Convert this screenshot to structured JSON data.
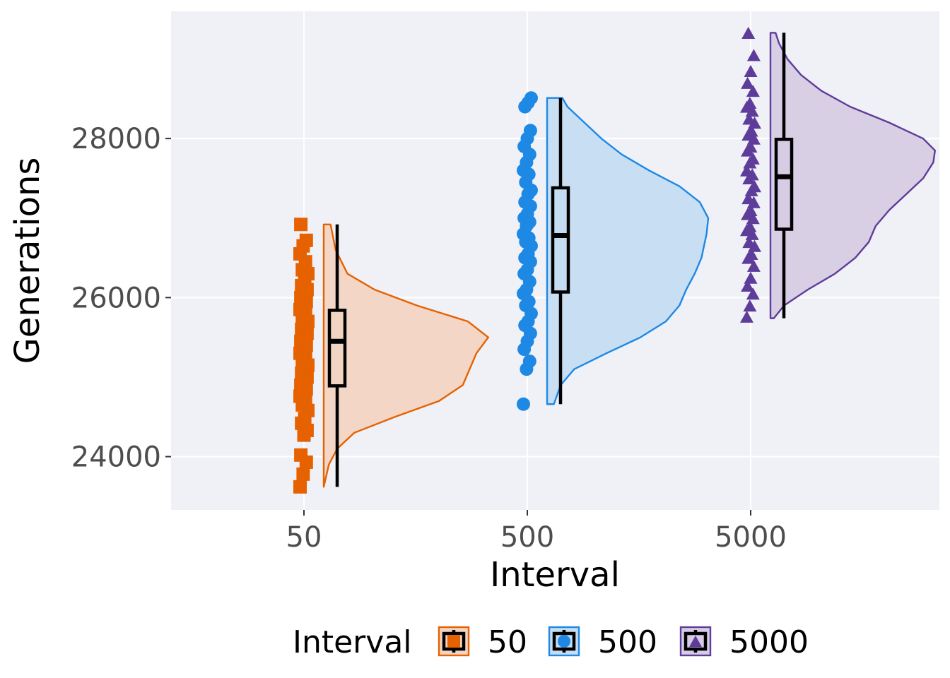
{
  "chart_data": {
    "type": "raincloud",
    "xlabel": "Interval",
    "ylabel": "Generations",
    "categories": [
      "50",
      "500",
      "5000"
    ],
    "ylim": [
      23330,
      29600
    ],
    "y_ticks": [
      24000,
      26000,
      28000
    ],
    "y_tick_labels": [
      "24000",
      "26000",
      "28000"
    ],
    "grid": true,
    "legend": {
      "position": "bottom",
      "title": "Interval",
      "entries": [
        "50",
        "500",
        "5000"
      ]
    },
    "series": [
      {
        "name": "50",
        "color": "#e66100",
        "fill": "#f2d4c2",
        "marker": "square",
        "box": {
          "min": 23620,
          "q1": 24890,
          "median": 25450,
          "q3": 25840,
          "max": 26920
        },
        "violin_range": [
          23620,
          26920
        ],
        "density": [
          [
            23620,
            0.0
          ],
          [
            23900,
            0.03
          ],
          [
            24100,
            0.08
          ],
          [
            24300,
            0.18
          ],
          [
            24500,
            0.42
          ],
          [
            24700,
            0.68
          ],
          [
            24900,
            0.82
          ],
          [
            25100,
            0.86
          ],
          [
            25300,
            0.9
          ],
          [
            25500,
            0.97
          ],
          [
            25700,
            0.85
          ],
          [
            25900,
            0.55
          ],
          [
            26100,
            0.3
          ],
          [
            26300,
            0.14
          ],
          [
            26600,
            0.07
          ],
          [
            26920,
            0.04
          ]
        ],
        "points": [
          23620,
          23780,
          23930,
          24020,
          24270,
          24330,
          24420,
          24480,
          24580,
          24650,
          24700,
          24760,
          24800,
          24850,
          24900,
          24950,
          25000,
          25050,
          25100,
          25150,
          25200,
          25250,
          25300,
          25350,
          25400,
          25450,
          25500,
          25550,
          25600,
          25650,
          25700,
          25750,
          25800,
          25850,
          25900,
          25950,
          26000,
          26050,
          26100,
          26150,
          26250,
          26300,
          26350,
          26450,
          26550,
          26650,
          26720,
          26920
        ]
      },
      {
        "name": "500",
        "color": "#1e88e5",
        "fill": "#c5ddf2",
        "marker": "circle",
        "box": {
          "min": 24660,
          "q1": 26070,
          "median": 26780,
          "q3": 27380,
          "max": 28510
        },
        "violin_range": [
          24660,
          28510
        ],
        "density": [
          [
            24660,
            0.04
          ],
          [
            24900,
            0.08
          ],
          [
            25100,
            0.16
          ],
          [
            25300,
            0.35
          ],
          [
            25500,
            0.55
          ],
          [
            25700,
            0.7
          ],
          [
            25900,
            0.78
          ],
          [
            26100,
            0.82
          ],
          [
            26300,
            0.87
          ],
          [
            26500,
            0.91
          ],
          [
            26800,
            0.94
          ],
          [
            27000,
            0.95
          ],
          [
            27200,
            0.9
          ],
          [
            27400,
            0.78
          ],
          [
            27600,
            0.6
          ],
          [
            27800,
            0.44
          ],
          [
            28000,
            0.32
          ],
          [
            28200,
            0.22
          ],
          [
            28400,
            0.12
          ],
          [
            28510,
            0.09
          ]
        ],
        "points": [
          24660,
          25100,
          25200,
          25350,
          25450,
          25550,
          25650,
          25700,
          25800,
          25900,
          25950,
          26050,
          26100,
          26200,
          26300,
          26350,
          26450,
          26500,
          26550,
          26650,
          26700,
          26750,
          26800,
          26900,
          26950,
          27000,
          27050,
          27150,
          27200,
          27300,
          27350,
          27450,
          27550,
          27600,
          27700,
          27800,
          27900,
          28000,
          28100,
          28400,
          28450,
          28510
        ]
      },
      {
        "name": "5000",
        "color": "#5e3c99",
        "fill": "#d7cce4",
        "marker": "triangle",
        "box": {
          "min": 25740,
          "q1": 26860,
          "median": 27520,
          "q3": 27990,
          "max": 29330
        },
        "violin_range": [
          25740,
          29330
        ],
        "density": [
          [
            25740,
            0.02
          ],
          [
            25900,
            0.08
          ],
          [
            26100,
            0.22
          ],
          [
            26300,
            0.38
          ],
          [
            26500,
            0.5
          ],
          [
            26700,
            0.58
          ],
          [
            26900,
            0.62
          ],
          [
            27100,
            0.7
          ],
          [
            27300,
            0.8
          ],
          [
            27500,
            0.9
          ],
          [
            27700,
            0.96
          ],
          [
            27850,
            0.97
          ],
          [
            28000,
            0.9
          ],
          [
            28200,
            0.7
          ],
          [
            28400,
            0.47
          ],
          [
            28600,
            0.3
          ],
          [
            28800,
            0.18
          ],
          [
            29000,
            0.1
          ],
          [
            29200,
            0.05
          ],
          [
            29330,
            0.03
          ]
        ],
        "points": [
          25760,
          25900,
          26050,
          26150,
          26250,
          26400,
          26500,
          26550,
          26650,
          26700,
          26800,
          26850,
          26900,
          27000,
          27050,
          27100,
          27200,
          27250,
          27350,
          27400,
          27500,
          27550,
          27600,
          27700,
          27750,
          27850,
          27900,
          28000,
          28050,
          28100,
          28200,
          28250,
          28350,
          28400,
          28450,
          28600,
          28700,
          28850,
          29050,
          29330
        ]
      }
    ]
  }
}
